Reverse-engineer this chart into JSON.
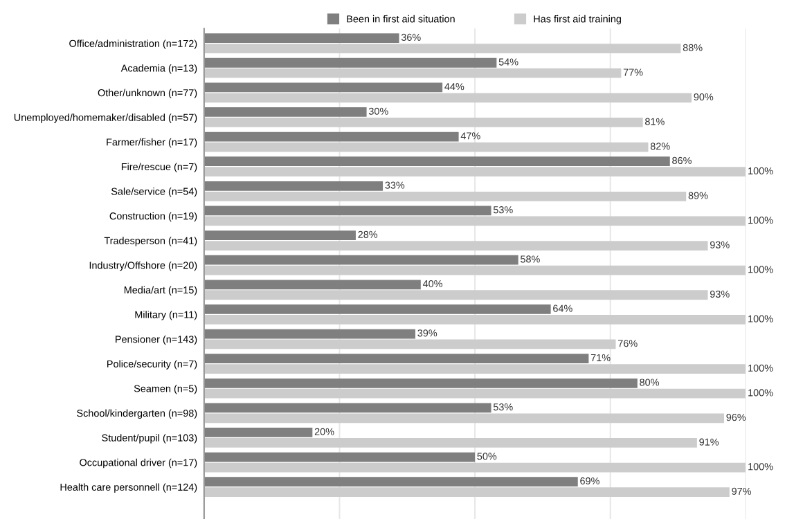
{
  "chart_data": {
    "type": "bar",
    "orientation": "horizontal",
    "legend": "top",
    "grid": "x",
    "xlim": [
      0,
      100
    ],
    "xticks": [
      {
        "value": 0,
        "label": null
      },
      {
        "value": 25,
        "label": null
      },
      {
        "value": 50,
        "label": null
      },
      {
        "value": 75,
        "label": null
      },
      {
        "value": 100,
        "label": null
      }
    ],
    "categories": [
      "Office/administration (n=172)",
      "Academia (n=13)",
      "Other/unknown (n=77)",
      "Unemployed/homemaker/disabled (n=57)",
      "Farmer/fisher (n=17)",
      "Fire/rescue (n=7)",
      "Sale/service (n=54)",
      "Construction (n=19)",
      "Tradesperson (n=41)",
      "Industry/Offshore (n=20)",
      "Media/art (n=15)",
      "Military (n=11)",
      "Pensioner (n=143)",
      "Police/security (n=7)",
      "Seamen (n=5)",
      "School/kindergarten (n=98)",
      "Student/pupil (n=103)",
      "Occupational driver (n=17)",
      "Health care personnell (n=124)"
    ],
    "series": [
      {
        "name": "Been in first aid situation",
        "color": "#7f7f7f",
        "values": [
          36,
          54,
          44,
          30,
          47,
          86,
          33,
          53,
          28,
          58,
          40,
          64,
          39,
          71,
          80,
          53,
          20,
          50,
          69
        ],
        "value_labels": [
          "36%",
          "54%",
          "44%",
          "30%",
          "47%",
          "86%",
          "33%",
          "53%",
          "28%",
          "58%",
          "40%",
          "64%",
          "39%",
          "71%",
          "80%",
          "53%",
          "20%",
          "50%",
          "69%"
        ]
      },
      {
        "name": "Has first aid training",
        "color": "#cccccc",
        "values": [
          88,
          77,
          90,
          81,
          82,
          100,
          89,
          100,
          93,
          100,
          93,
          100,
          76,
          100,
          100,
          96,
          91,
          100,
          97
        ],
        "value_labels": [
          "88%",
          "77%",
          "90%",
          "81%",
          "82%",
          "100%",
          "89%",
          "100%",
          "93%",
          "100%",
          "93%",
          "100%",
          "76%",
          "100%",
          "100%",
          "96%",
          "91%",
          "100%",
          "97%"
        ]
      }
    ]
  }
}
